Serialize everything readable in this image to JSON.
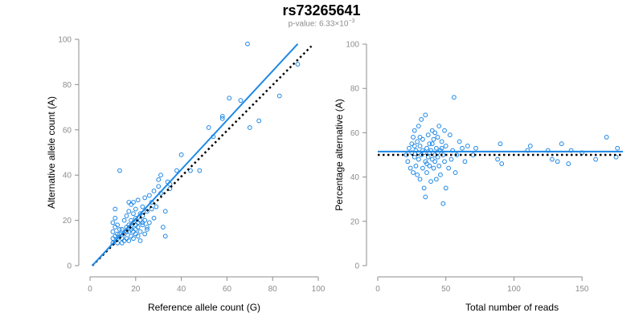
{
  "title": "rs73265641",
  "subtitle": {
    "prefix": "p-value: 6.33×10",
    "exponent": "−3"
  },
  "colors": {
    "series": "#1e88e5",
    "reference_line": "#000000",
    "axis": "#8c8c8c"
  },
  "chart_data": [
    {
      "type": "scatter",
      "xlabel": "Reference allele count (G)",
      "ylabel": "Alternative allele count (A)",
      "xlim": [
        0,
        100
      ],
      "ylim": [
        0,
        100
      ],
      "xticks": [
        "0",
        "20",
        "40",
        "60",
        "80",
        "100"
      ],
      "yticks": [
        "0",
        "20",
        "40",
        "60",
        "80",
        "100"
      ],
      "grid": false,
      "fit_line": {
        "x": [
          1,
          91
        ],
        "y": [
          0,
          98
        ],
        "style": "solid"
      },
      "reference_line": {
        "x": [
          1,
          97
        ],
        "y": [
          0,
          97
        ],
        "style": "dotted"
      },
      "points": [
        [
          10,
          10
        ],
        [
          10,
          12
        ],
        [
          11,
          13
        ],
        [
          10,
          15
        ],
        [
          11,
          17
        ],
        [
          10,
          19
        ],
        [
          11,
          21
        ],
        [
          11,
          25
        ],
        [
          12,
          12
        ],
        [
          12,
          14
        ],
        [
          13,
          16
        ],
        [
          12,
          18
        ],
        [
          14,
          10
        ],
        [
          13,
          42
        ],
        [
          14,
          12
        ],
        [
          15,
          14
        ],
        [
          14,
          16
        ],
        [
          15,
          20
        ],
        [
          16,
          22
        ],
        [
          16,
          17
        ],
        [
          16,
          12
        ],
        [
          17,
          11
        ],
        [
          17,
          15
        ],
        [
          17,
          18
        ],
        [
          17,
          24
        ],
        [
          18,
          13
        ],
        [
          18,
          17
        ],
        [
          18,
          20
        ],
        [
          18,
          27
        ],
        [
          19,
          12
        ],
        [
          19,
          15
        ],
        [
          19,
          19
        ],
        [
          19,
          23
        ],
        [
          20,
          14
        ],
        [
          20,
          16
        ],
        [
          20,
          18
        ],
        [
          20,
          21
        ],
        [
          20,
          25
        ],
        [
          21,
          13
        ],
        [
          21,
          19
        ],
        [
          21,
          29
        ],
        [
          22,
          11
        ],
        [
          22,
          15
        ],
        [
          22,
          20
        ],
        [
          22,
          23
        ],
        [
          23,
          18
        ],
        [
          23,
          22
        ],
        [
          23,
          26
        ],
        [
          24,
          14
        ],
        [
          24,
          20
        ],
        [
          24,
          30
        ],
        [
          25,
          16
        ],
        [
          25,
          24
        ],
        [
          26,
          31
        ],
        [
          26,
          19
        ],
        [
          27,
          25
        ],
        [
          27,
          28
        ],
        [
          28,
          33
        ],
        [
          28,
          21
        ],
        [
          29,
          26
        ],
        [
          30,
          35
        ],
        [
          30,
          38
        ],
        [
          31,
          32
        ],
        [
          31,
          40
        ],
        [
          32,
          17
        ],
        [
          33,
          24
        ],
        [
          33,
          13
        ],
        [
          34,
          37
        ],
        [
          35,
          34
        ],
        [
          35,
          36
        ],
        [
          38,
          42
        ],
        [
          40,
          49
        ],
        [
          44,
          42
        ],
        [
          48,
          42
        ],
        [
          52,
          61
        ],
        [
          54,
          57
        ],
        [
          58,
          65
        ],
        [
          58,
          66
        ],
        [
          61,
          74
        ],
        [
          66,
          73
        ],
        [
          69,
          98
        ],
        [
          70,
          61
        ],
        [
          74,
          64
        ],
        [
          83,
          75
        ],
        [
          91,
          89
        ],
        [
          16,
          15
        ],
        [
          18,
          16
        ],
        [
          21,
          17
        ],
        [
          15,
          11
        ],
        [
          13,
          14
        ],
        [
          12,
          10
        ],
        [
          17,
          28
        ],
        [
          19,
          28
        ],
        [
          23,
          19
        ],
        [
          25,
          17
        ]
      ]
    },
    {
      "type": "scatter",
      "xlabel": "Total number of reads",
      "ylabel": "Percentage alternative (A)",
      "xlim": [
        0,
        180
      ],
      "ylim": [
        0,
        100
      ],
      "xticks": [
        "0",
        "50",
        "100",
        "150"
      ],
      "yticks": [
        "0",
        "20",
        "40",
        "60",
        "80",
        "100"
      ],
      "grid": false,
      "fit_line": {
        "y": 51.5,
        "style": "solid"
      },
      "reference_line": {
        "y": 50,
        "style": "dotted"
      },
      "points": [
        [
          21,
          50
        ],
        [
          22,
          47
        ],
        [
          23,
          53
        ],
        [
          24,
          44
        ],
        [
          25,
          55
        ],
        [
          25,
          51
        ],
        [
          26,
          42
        ],
        [
          26,
          58
        ],
        [
          27,
          49
        ],
        [
          27,
          61
        ],
        [
          28,
          45
        ],
        [
          28,
          52
        ],
        [
          29,
          41
        ],
        [
          29,
          56
        ],
        [
          30,
          48
        ],
        [
          30,
          63
        ],
        [
          31,
          39
        ],
        [
          31,
          54
        ],
        [
          32,
          50
        ],
        [
          32,
          66
        ],
        [
          33,
          44
        ],
        [
          33,
          57
        ],
        [
          34,
          35
        ],
        [
          34,
          51
        ],
        [
          35,
          31
        ],
        [
          35,
          47
        ],
        [
          35,
          68
        ],
        [
          36,
          53
        ],
        [
          36,
          42
        ],
        [
          37,
          49
        ],
        [
          37,
          59
        ],
        [
          38,
          45
        ],
        [
          38,
          55
        ],
        [
          39,
          38
        ],
        [
          39,
          52
        ],
        [
          40,
          48
        ],
        [
          40,
          61
        ],
        [
          41,
          44
        ],
        [
          41,
          57
        ],
        [
          42,
          50
        ],
        [
          42,
          47
        ],
        [
          43,
          53
        ],
        [
          43,
          39
        ],
        [
          44,
          58
        ],
        [
          44,
          49
        ],
        [
          45,
          45
        ],
        [
          45,
          63
        ],
        [
          46,
          52
        ],
        [
          46,
          41
        ],
        [
          47,
          56
        ],
        [
          48,
          28
        ],
        [
          48,
          50
        ],
        [
          49,
          47
        ],
        [
          49,
          61
        ],
        [
          50,
          35
        ],
        [
          50,
          54
        ],
        [
          52,
          44
        ],
        [
          53,
          59
        ],
        [
          54,
          48
        ],
        [
          55,
          52
        ],
        [
          56,
          76
        ],
        [
          57,
          42
        ],
        [
          58,
          50
        ],
        [
          60,
          56
        ],
        [
          62,
          53
        ],
        [
          64,
          47
        ],
        [
          66,
          54
        ],
        [
          70,
          50
        ],
        [
          72,
          53
        ],
        [
          88,
          48
        ],
        [
          90,
          55
        ],
        [
          91,
          46
        ],
        [
          110,
          52
        ],
        [
          112,
          54
        ],
        [
          125,
          52
        ],
        [
          128,
          48
        ],
        [
          132,
          47
        ],
        [
          135,
          55
        ],
        [
          140,
          46
        ],
        [
          142,
          52
        ],
        [
          150,
          51
        ],
        [
          160,
          48
        ],
        [
          168,
          58
        ],
        [
          175,
          49
        ],
        [
          176,
          53
        ],
        [
          30,
          51
        ],
        [
          33,
          52
        ],
        [
          38,
          51
        ],
        [
          44,
          51
        ],
        [
          27,
          54
        ],
        [
          36,
          46
        ],
        [
          40,
          55
        ],
        [
          47,
          53
        ],
        [
          42,
          60
        ],
        [
          31,
          58
        ]
      ]
    }
  ]
}
